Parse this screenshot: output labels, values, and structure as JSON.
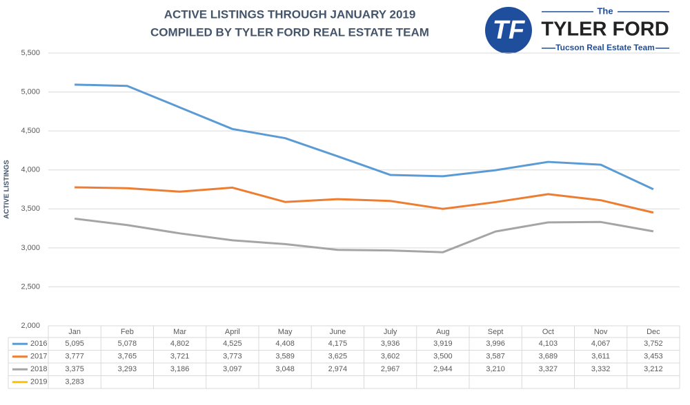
{
  "chart_data": {
    "type": "line",
    "title": "ACTIVE LISTINGS THROUGH JANUARY 2019",
    "subtitle": "COMPILED BY TYLER FORD REAL ESTATE TEAM",
    "y_label": "ACTIVE LISTINGS",
    "logo": {
      "mark": "TF",
      "top": "The",
      "name": "TYLER FORD",
      "tagline": "Tucson Real Estate Team"
    },
    "categories": [
      "Jan",
      "Feb",
      "Mar",
      "April",
      "May",
      "June",
      "July",
      "Aug",
      "Sept",
      "Oct",
      "Nov",
      "Dec"
    ],
    "series": [
      {
        "name": "2016",
        "color": "#5b9bd5",
        "values": [
          5095,
          5078,
          4802,
          4525,
          4408,
          4175,
          3936,
          3919,
          3996,
          4103,
          4067,
          3752
        ],
        "value_labels": [
          "5,095",
          "5,078",
          "4,802",
          "4,525",
          "4,408",
          "4,175",
          "3,936",
          "3,919",
          "3,996",
          "4,103",
          "4,067",
          "3,752"
        ]
      },
      {
        "name": "2017",
        "color": "#ed7d31",
        "values": [
          3777,
          3765,
          3721,
          3773,
          3589,
          3625,
          3602,
          3500,
          3587,
          3689,
          3611,
          3453
        ],
        "value_labels": [
          "3,777",
          "3,765",
          "3,721",
          "3,773",
          "3,589",
          "3,625",
          "3,602",
          "3,500",
          "3,587",
          "3,689",
          "3,611",
          "3,453"
        ]
      },
      {
        "name": "2018",
        "color": "#a5a5a5",
        "values": [
          3375,
          3293,
          3186,
          3097,
          3048,
          2974,
          2967,
          2944,
          3210,
          3327,
          3332,
          3212
        ],
        "value_labels": [
          "3,375",
          "3,293",
          "3,186",
          "3,097",
          "3,048",
          "2,974",
          "2,967",
          "2,944",
          "3,210",
          "3,327",
          "3,332",
          "3,212"
        ]
      },
      {
        "name": "2019",
        "color": "#ffc000",
        "values": [
          3283,
          null,
          null,
          null,
          null,
          null,
          null,
          null,
          null,
          null,
          null,
          null
        ],
        "value_labels": [
          "3,283",
          null,
          null,
          null,
          null,
          null,
          null,
          null,
          null,
          null,
          null,
          null
        ]
      }
    ],
    "ylim": [
      2000,
      5500
    ],
    "yticks": [
      {
        "value": 2000,
        "label": "2,000"
      },
      {
        "value": 2500,
        "label": "2,500"
      },
      {
        "value": 3000,
        "label": "3,000"
      },
      {
        "value": 3500,
        "label": "3,500"
      },
      {
        "value": 4000,
        "label": "4,000"
      },
      {
        "value": 4500,
        "label": "4,500"
      },
      {
        "value": 5000,
        "label": "5,000"
      },
      {
        "value": 5500,
        "label": "5,500"
      }
    ],
    "grid": true
  }
}
